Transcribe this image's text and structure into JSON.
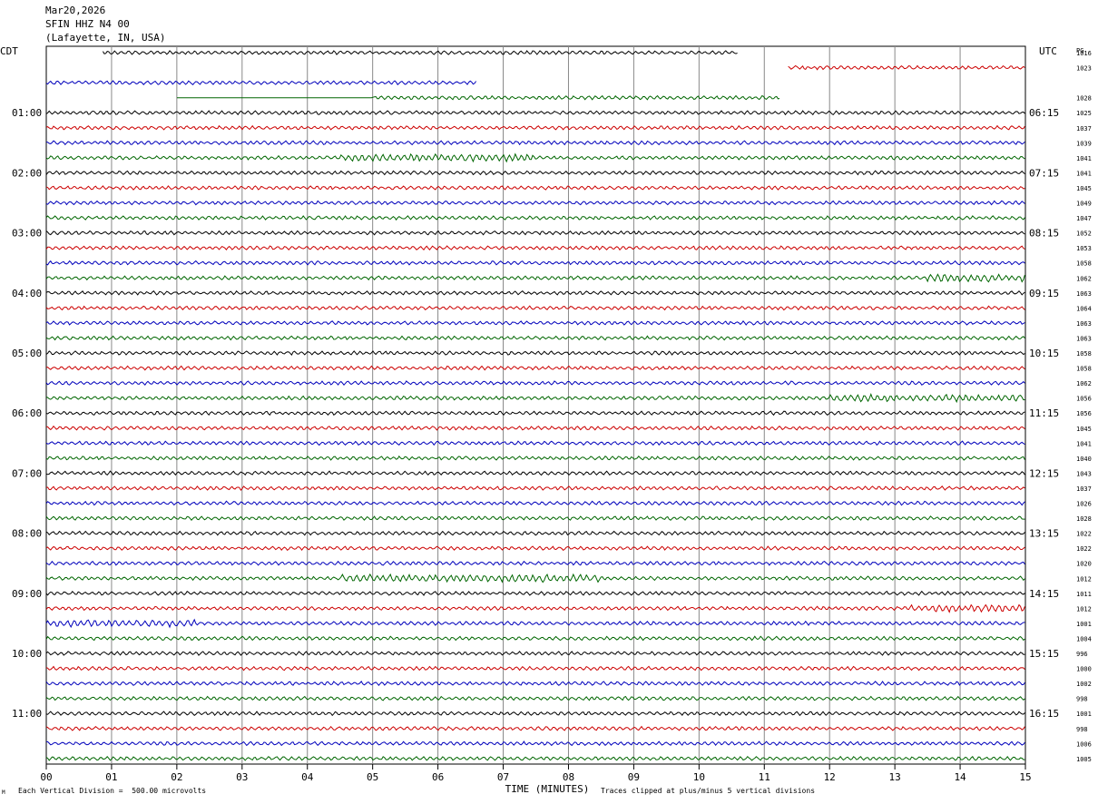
{
  "header": {
    "date": "Mar20,2026",
    "station": "SFIN HHZ N4 00",
    "location": "(Lafayette, IN, USA)"
  },
  "labels": {
    "left_tz": "CDT",
    "right_tz": "UTC",
    "right_col": "PG",
    "x_axis_title": "TIME (MINUTES)",
    "scale_note": "Each Vertical Division =  500.00 microvolts",
    "clip_note": "Traces clipped at plus/minus 5 vertical divisions",
    "corner_mark": "M"
  },
  "colors": {
    "cycle": [
      "#000000",
      "#cc0000",
      "#0000bb",
      "#006600"
    ],
    "grid": "#888888"
  },
  "chart_data": {
    "type": "line",
    "subtype": "helicorder",
    "x_ticks": [
      "00",
      "01",
      "02",
      "03",
      "04",
      "05",
      "06",
      "07",
      "08",
      "09",
      "10",
      "11",
      "12",
      "13",
      "14",
      "15"
    ],
    "xlim": [
      0,
      15
    ],
    "traces_per_hour": 4,
    "minutes_per_trace": 15,
    "left_labels": [
      "01:00",
      "02:00",
      "03:00",
      "04:00",
      "05:00",
      "06:00",
      "07:00",
      "08:00",
      "09:00",
      "10:00",
      "11:00"
    ],
    "right_labels": [
      "06:15",
      "07:15",
      "08:15",
      "09:15",
      "10:15",
      "11:15",
      "12:15",
      "13:15",
      "14:15",
      "15:15",
      "16:15"
    ],
    "left_label_rows": [
      4,
      8,
      12,
      16,
      20,
      24,
      28,
      32,
      36,
      40,
      44
    ],
    "trace_values": [
      1016,
      1023,
      null,
      1028,
      1025,
      1037,
      1039,
      1041,
      1041,
      1045,
      1049,
      1047,
      1052,
      1053,
      1058,
      1062,
      1063,
      1064,
      1063,
      1063,
      1058,
      1058,
      1062,
      1056,
      1056,
      1045,
      1041,
      1040,
      1043,
      1037,
      1026,
      1028,
      1022,
      1022,
      1020,
      1012,
      1011,
      1012,
      1001,
      1004,
      996,
      1000,
      1002,
      998,
      1001,
      998,
      1006,
      1005
    ],
    "gaps": [
      {
        "row": 0,
        "from": 0,
        "to": 0.85
      },
      {
        "row": 0,
        "from": 10.6,
        "to": 15
      },
      {
        "row": 1,
        "from": 0,
        "to": 11.35
      },
      {
        "row": 2,
        "from": 6.6,
        "to": 15
      },
      {
        "row": 3,
        "from": 0,
        "to": 2.0
      },
      {
        "row": 3,
        "from": 11.25,
        "to": 15
      }
    ],
    "flat_segments": [
      {
        "row": 3,
        "from": 2.0,
        "to": 5.0
      }
    ],
    "bursts": [
      {
        "row": 7,
        "from": 4.5,
        "to": 7.5
      },
      {
        "row": 15,
        "from": 13.5,
        "to": 15
      },
      {
        "row": 23,
        "from": 12.0,
        "to": 15
      },
      {
        "row": 35,
        "from": 4.5,
        "to": 8.5
      },
      {
        "row": 37,
        "from": 13.2,
        "to": 15
      },
      {
        "row": 38,
        "from": 0,
        "to": 2.3
      }
    ]
  }
}
